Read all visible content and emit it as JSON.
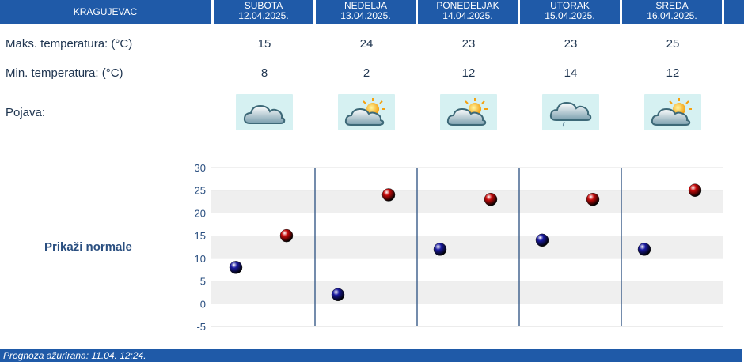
{
  "header": {
    "city": "KRAGUJEVAC",
    "days": [
      {
        "name": "SUBOTA",
        "date": "12.04.2025."
      },
      {
        "name": "NEDELJA",
        "date": "13.04.2025."
      },
      {
        "name": "PONEDELJAK",
        "date": "14.04.2025."
      },
      {
        "name": "UTORAK",
        "date": "15.04.2025."
      },
      {
        "name": "SREDA",
        "date": "16.04.2025."
      }
    ]
  },
  "rows": {
    "max_label": "Maks. temperatura: (°C)",
    "min_label": "Min. temperatura: (°C)",
    "phenomenon_label": "Pojava:",
    "max_values": [
      "15",
      "24",
      "23",
      "23",
      "25"
    ],
    "min_values": [
      "8",
      "2",
      "12",
      "14",
      "12"
    ],
    "icons": [
      "cloud-icon",
      "partly-sunny-icon",
      "partly-sunny-icon",
      "cloud-drizzle-icon",
      "partly-sunny-icon"
    ]
  },
  "normals_link": "Prikaži normale",
  "chart_data": {
    "type": "scatter",
    "categories": [
      "SUBOTA",
      "NEDELJA",
      "PONEDELJAK",
      "UTORAK",
      "SREDA"
    ],
    "series": [
      {
        "values": [
          8,
          2,
          12,
          14,
          12
        ],
        "color": "#1a1aa0"
      },
      {
        "values": [
          15,
          24,
          23,
          23,
          25
        ],
        "color": "#c80a0a"
      }
    ],
    "ylim": [
      -5,
      30
    ],
    "yticks": [
      "-5",
      "0",
      "5",
      "10",
      "15",
      "20",
      "25",
      "30"
    ],
    "grid": "alternating horizontal bands",
    "xlabel": "",
    "ylabel": ""
  },
  "footer": {
    "text": "Prognoza ažurirana:  11.04. 12:24."
  },
  "colors": {
    "header_bg": "#1f5aa8",
    "icon_bg": "#d6f1f2",
    "min_dot": "#1a1aa0",
    "max_dot": "#c80a0a"
  }
}
